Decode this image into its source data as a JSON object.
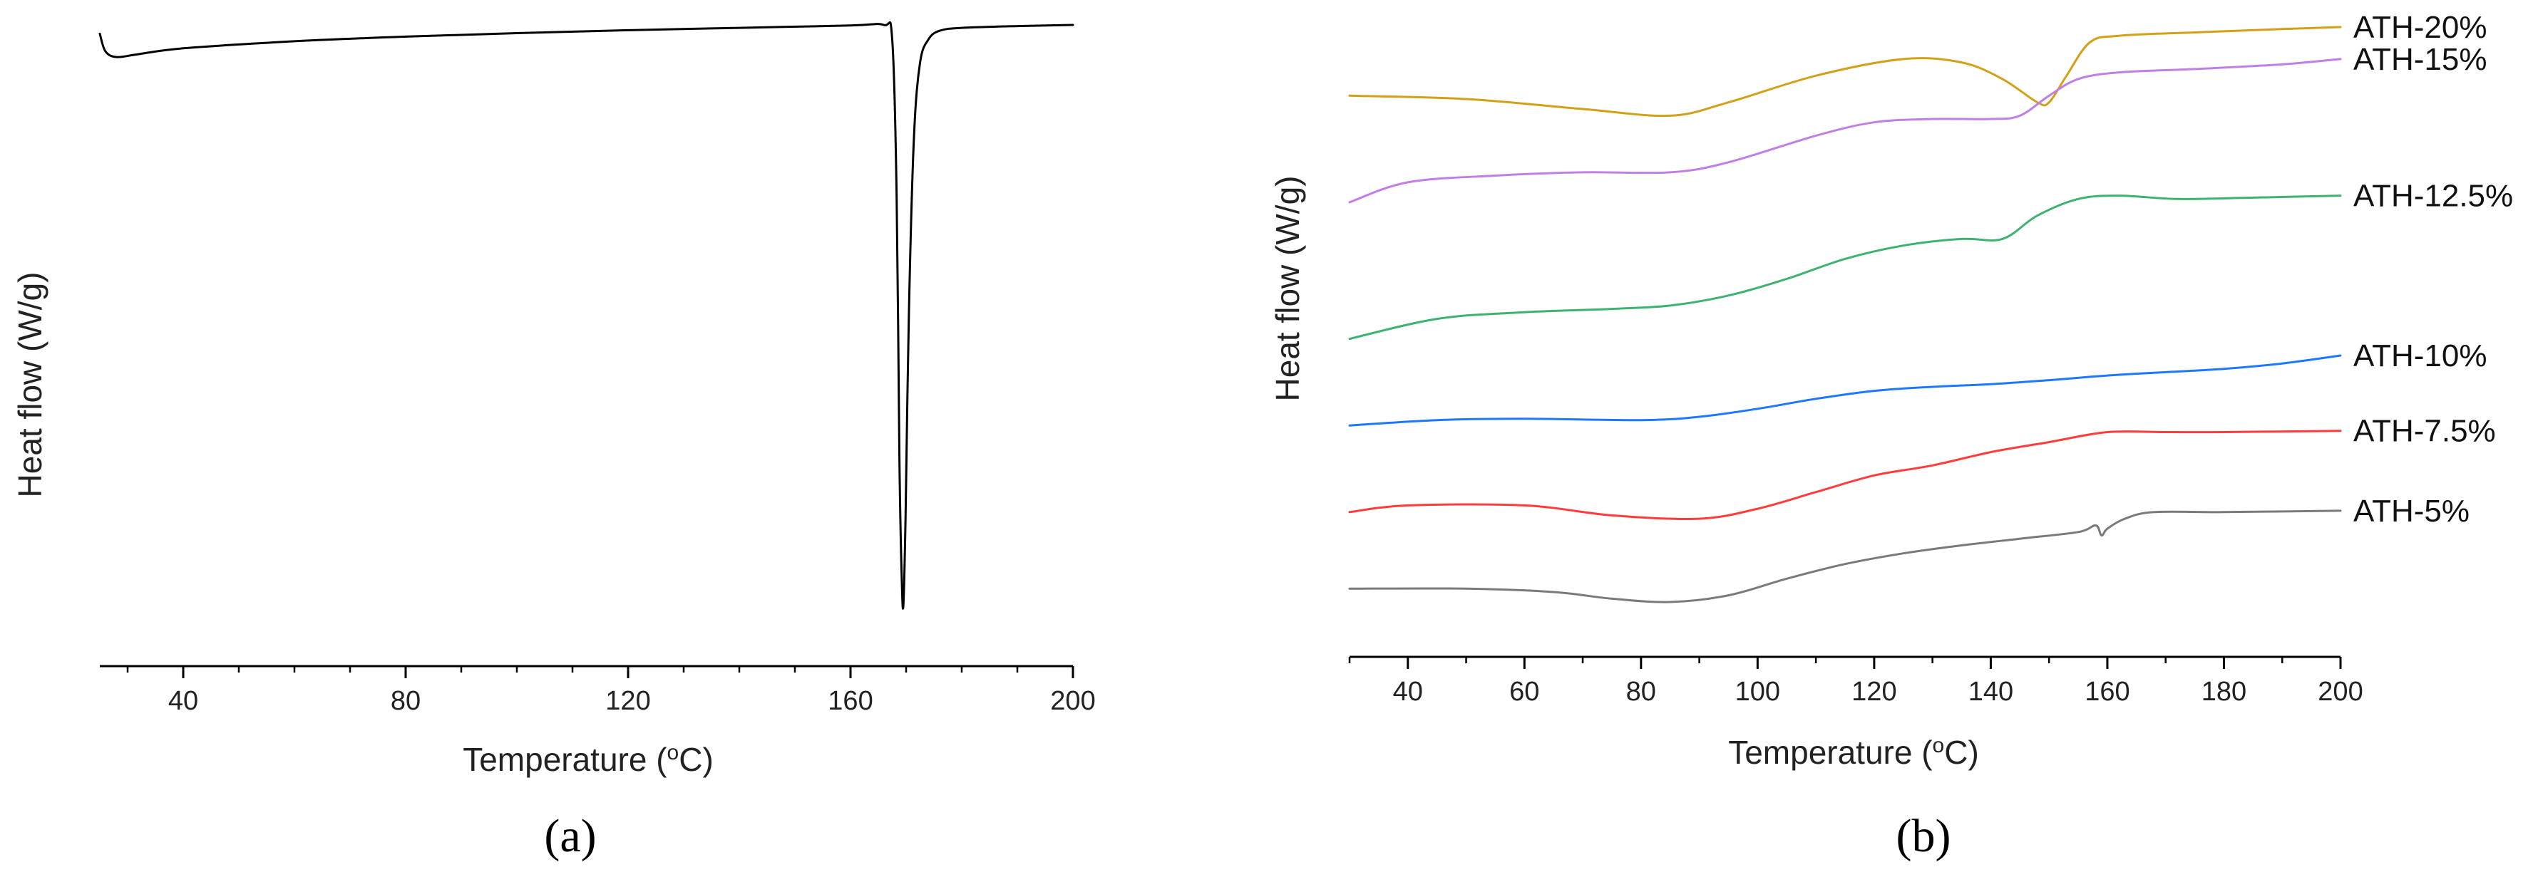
{
  "chart_data": [
    {
      "type": "line",
      "panel_label": "(a)",
      "xlabel": "Temperature (oC)",
      "ylabel": "Heat flow (W/g)",
      "xlim": [
        25,
        200
      ],
      "xticks": [
        40,
        80,
        120,
        160,
        200
      ],
      "x_minor_step": 10,
      "y_ticks_shown": false,
      "grid": false,
      "series": [
        {
          "color": "#000000",
          "x": [
            25,
            26,
            28,
            32,
            40,
            60,
            80,
            100,
            120,
            140,
            160,
            166,
            167.5,
            168.3,
            168.8,
            169.2,
            169.5,
            169.9,
            170.5,
            171.4,
            172.5,
            174,
            176,
            180,
            190,
            200
          ],
          "y": [
            0.98,
            0.95,
            0.94,
            0.945,
            0.955,
            0.967,
            0.975,
            0.981,
            0.986,
            0.99,
            0.994,
            0.995,
            0.97,
            0.7,
            0.25,
            0.05,
            0.0,
            0.15,
            0.5,
            0.8,
            0.93,
            0.97,
            0.985,
            0.99,
            0.993,
            0.995
          ]
        }
      ]
    },
    {
      "type": "line",
      "panel_label": "(b)",
      "xlabel": "Temperature (oC)",
      "ylabel": "Heat flow (W/g)",
      "xlim": [
        30,
        200
      ],
      "xticks": [
        40,
        60,
        80,
        100,
        120,
        140,
        160,
        180,
        200
      ],
      "x_minor_step": 10,
      "y_ticks_shown": false,
      "grid": false,
      "series": [
        {
          "name": "ATH-20%",
          "color": "#d4a017",
          "x": [
            30,
            50,
            70,
            85,
            95,
            110,
            125,
            135,
            142,
            148,
            150,
            153,
            157,
            162,
            175,
            190,
            200
          ],
          "y": [
            9.65,
            9.6,
            9.45,
            9.35,
            9.55,
            9.95,
            10.2,
            10.15,
            9.9,
            9.55,
            9.55,
            9.95,
            10.45,
            10.55,
            10.6,
            10.65,
            10.68
          ]
        },
        {
          "name": "ATH-15%",
          "color": "#c17fe6",
          "x": [
            30,
            40,
            55,
            70,
            85,
            95,
            110,
            120,
            130,
            140,
            145,
            150,
            155,
            162,
            175,
            190,
            200
          ],
          "y": [
            8.05,
            8.35,
            8.45,
            8.5,
            8.5,
            8.65,
            9.05,
            9.25,
            9.3,
            9.3,
            9.35,
            9.65,
            9.9,
            10.0,
            10.05,
            10.12,
            10.2
          ]
        },
        {
          "name": "ATH-12.5%",
          "color": "#3cb371",
          "x": [
            30,
            45,
            60,
            75,
            85,
            95,
            105,
            115,
            125,
            135,
            142,
            148,
            155,
            162,
            172,
            185,
            200
          ],
          "y": [
            6.0,
            6.3,
            6.4,
            6.45,
            6.5,
            6.65,
            6.9,
            7.2,
            7.4,
            7.5,
            7.5,
            7.85,
            8.1,
            8.15,
            8.1,
            8.12,
            8.15
          ]
        },
        {
          "name": "ATH-10%",
          "color": "#1e78ff",
          "x": [
            30,
            45,
            60,
            80,
            90,
            100,
            110,
            120,
            130,
            140,
            150,
            160,
            170,
            180,
            190,
            200
          ],
          "y": [
            4.7,
            4.78,
            4.8,
            4.78,
            4.83,
            4.95,
            5.1,
            5.22,
            5.28,
            5.32,
            5.38,
            5.45,
            5.5,
            5.55,
            5.63,
            5.75
          ]
        },
        {
          "name": "ATH-7.5%",
          "color": "#ff3b3b",
          "x": [
            30,
            40,
            60,
            75,
            90,
            100,
            110,
            120,
            130,
            140,
            150,
            160,
            170,
            180,
            200
          ],
          "y": [
            3.4,
            3.5,
            3.5,
            3.35,
            3.3,
            3.45,
            3.7,
            3.95,
            4.1,
            4.3,
            4.45,
            4.6,
            4.6,
            4.6,
            4.62
          ]
        },
        {
          "name": "ATH-5%",
          "color": "#7a7a7a",
          "x": [
            30,
            50,
            65,
            75,
            85,
            95,
            105,
            115,
            125,
            135,
            145,
            155,
            158,
            159,
            160,
            163,
            168,
            180,
            200
          ],
          "y": [
            2.25,
            2.25,
            2.2,
            2.1,
            2.05,
            2.15,
            2.4,
            2.62,
            2.78,
            2.9,
            3.0,
            3.1,
            3.2,
            3.05,
            3.15,
            3.3,
            3.4,
            3.4,
            3.42
          ]
        }
      ]
    }
  ]
}
